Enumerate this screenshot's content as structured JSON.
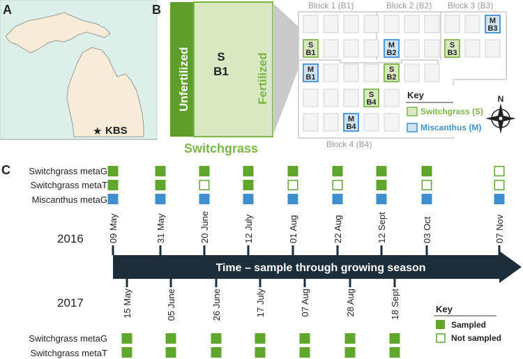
{
  "panels": {
    "a": "A",
    "b": "B",
    "c": "C"
  },
  "map": {
    "marker_label": "KBS",
    "land_color": "#f6ecd7",
    "water_color": "#dcefe9",
    "star_icon": "star-icon"
  },
  "plot": {
    "block_labels": [
      "Block 1 (B1)",
      "Block 2 (B2)",
      "Block 3 (B3)",
      "Block 4 (B4)"
    ],
    "zoom": {
      "left_label": "Unfertilized",
      "right_label": "Fertilized",
      "center_top": "S",
      "center_bottom": "B1",
      "bottom_label": "Switchgrass"
    },
    "plots": [
      {
        "crop": "S",
        "block": "B1"
      },
      {
        "crop": "M",
        "block": "B1"
      },
      {
        "crop": "M",
        "block": "B2"
      },
      {
        "crop": "S",
        "block": "B2"
      },
      {
        "crop": "M",
        "block": "B3"
      },
      {
        "crop": "S",
        "block": "B3"
      },
      {
        "crop": "S",
        "block": "B4"
      },
      {
        "crop": "M",
        "block": "B4"
      }
    ],
    "key": {
      "title": "Key",
      "switchgrass": "Switchgrass (S)",
      "miscanthus": "Miscanthus (M)"
    },
    "compass_icon": "compass-icon",
    "compass_north": "N",
    "colors": {
      "switchgrass": "#7ab648",
      "switchgrass_light": "#d9e8c0",
      "miscanthus": "#3f8fcf",
      "miscanthus_light": "#cfe3f3",
      "grid": "#cccccc"
    }
  },
  "timeline": {
    "arrow_label": "Time – sample through growing season",
    "arrow_color": "#1d2e3b",
    "year_top": "2016",
    "year_bottom": "2017",
    "rows_2016": [
      "Switchgrass metaG",
      "Switchgrass metaT",
      "Miscanthus metaG"
    ],
    "rows_2017": [
      "Switchgrass metaG",
      "Switchgrass metaT"
    ],
    "dates_2016": [
      {
        "label": "09 May",
        "sg_metaG": true,
        "sg_metaT": true,
        "misc_metaG": true
      },
      {
        "label": "31 May",
        "sg_metaG": true,
        "sg_metaT": true,
        "misc_metaG": true
      },
      {
        "label": "20 June",
        "sg_metaG": true,
        "sg_metaT": false,
        "misc_metaG": true
      },
      {
        "label": "12 July",
        "sg_metaG": true,
        "sg_metaT": true,
        "misc_metaG": true
      },
      {
        "label": "01 Aug",
        "sg_metaG": true,
        "sg_metaT": false,
        "misc_metaG": true
      },
      {
        "label": "22 Aug",
        "sg_metaG": true,
        "sg_metaT": false,
        "misc_metaG": true
      },
      {
        "label": "12 Sept",
        "sg_metaG": true,
        "sg_metaT": true,
        "misc_metaG": true
      },
      {
        "label": "03 Oct",
        "sg_metaG": true,
        "sg_metaT": false,
        "misc_metaG": true
      },
      {
        "label": "07 Nov",
        "sg_metaG": false,
        "sg_metaT": false,
        "misc_metaG": true
      }
    ],
    "dates_2017": [
      {
        "label": "15 May",
        "sg_metaG": true,
        "sg_metaT": true
      },
      {
        "label": "05 June",
        "sg_metaG": true,
        "sg_metaT": true
      },
      {
        "label": "26 June",
        "sg_metaG": true,
        "sg_metaT": true
      },
      {
        "label": "17 July",
        "sg_metaG": true,
        "sg_metaT": true
      },
      {
        "label": "07 Aug",
        "sg_metaG": true,
        "sg_metaT": true
      },
      {
        "label": "28 Aug",
        "sg_metaG": true,
        "sg_metaT": true
      },
      {
        "label": "18 Sept",
        "sg_metaG": true,
        "sg_metaT": true
      }
    ],
    "key": {
      "title": "Key",
      "sampled": "Sampled",
      "not_sampled": "Not sampled"
    }
  }
}
